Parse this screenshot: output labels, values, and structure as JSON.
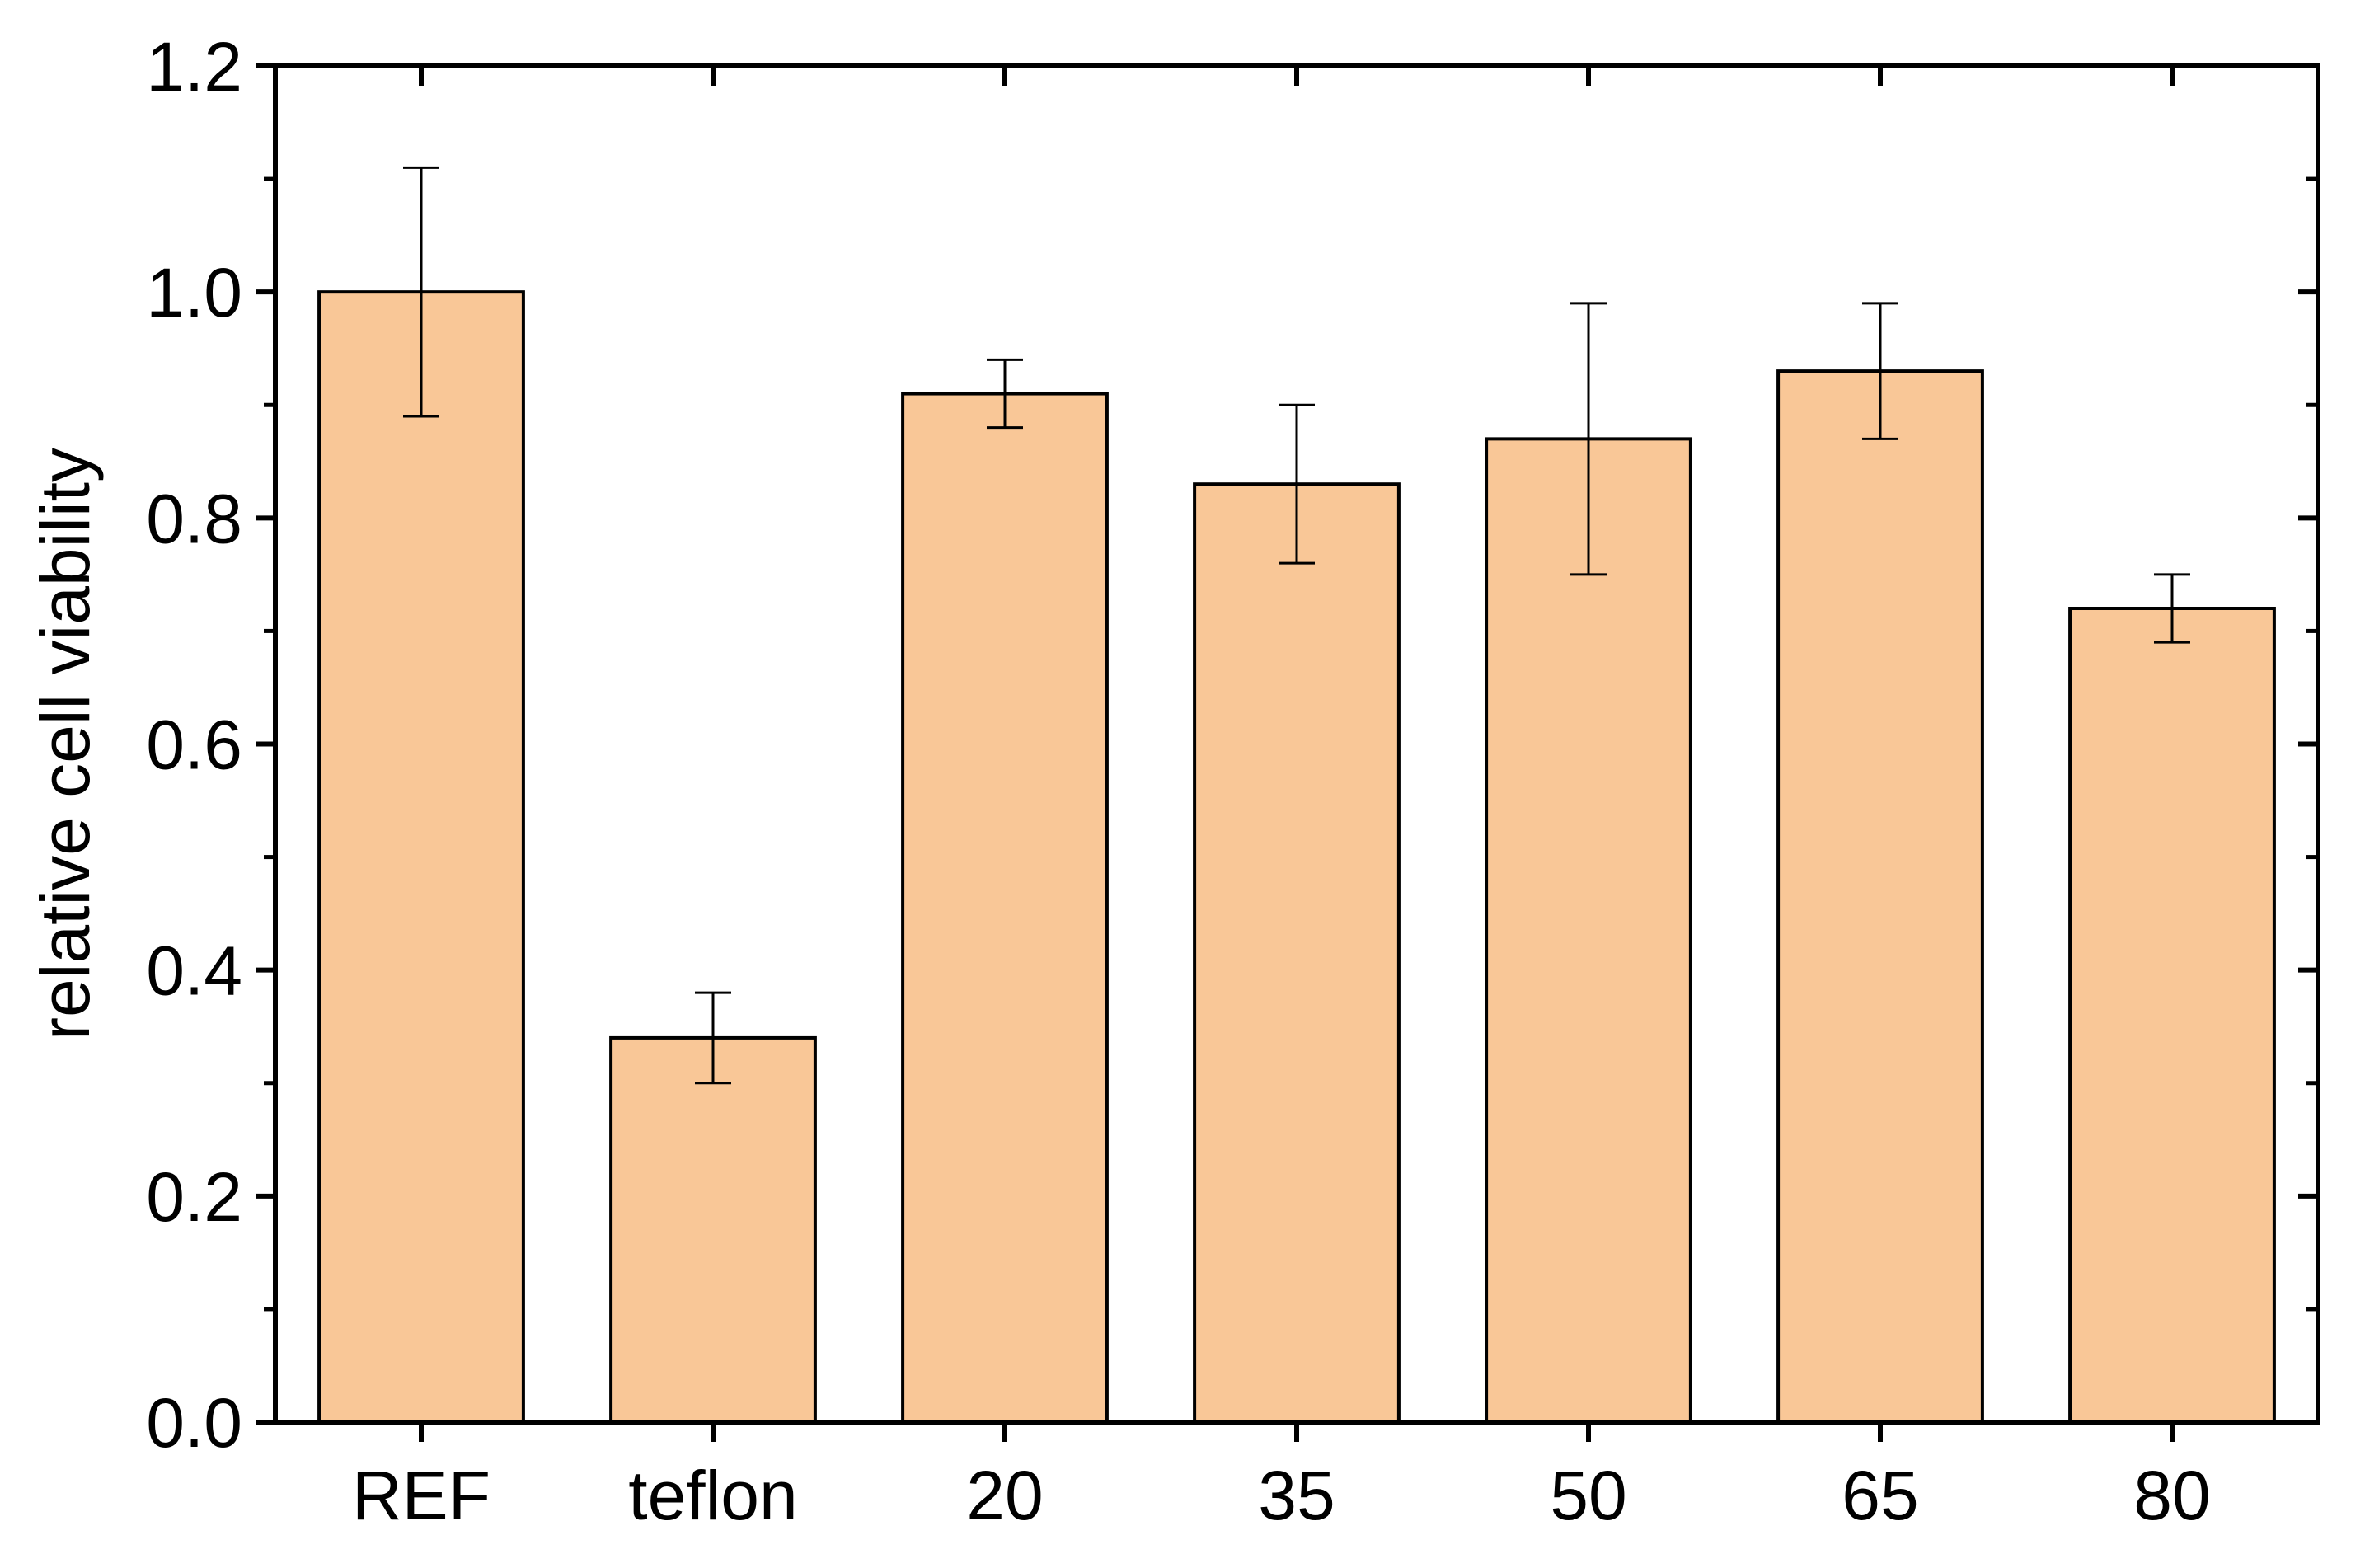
{
  "chart_data": {
    "type": "bar",
    "title": "",
    "xlabel": "",
    "ylabel": "relative cell viability",
    "categories": [
      "REF",
      "teflon",
      "20",
      "35",
      "50",
      "65",
      "80"
    ],
    "values": [
      1.0,
      0.34,
      0.91,
      0.83,
      0.87,
      0.93,
      0.72
    ],
    "error_upper": [
      1.11,
      0.38,
      0.94,
      0.9,
      0.99,
      0.99,
      0.75
    ],
    "error_lower": [
      0.89,
      0.3,
      0.88,
      0.76,
      0.75,
      0.87,
      0.69
    ],
    "ylim": [
      0,
      1.2
    ],
    "yticks": [
      "0.0",
      "0.2",
      "0.4",
      "0.6",
      "0.8",
      "1.0",
      "1.2"
    ],
    "grid": false,
    "bar_color": "#F9C797",
    "edge_color": "#000000"
  }
}
